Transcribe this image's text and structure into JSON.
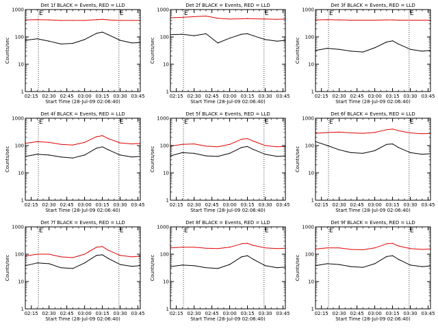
{
  "colors": {
    "events": "#000000",
    "lld": "#e00000",
    "axes": "#000000"
  },
  "panel_common": {
    "ylabel": "Counts/sec",
    "xlabel": "Start Time (28-Jul-09 02:06:40)",
    "y_scale": "log",
    "ylim": [
      1,
      1000
    ],
    "y_tick_labels": [
      "1",
      "10",
      "100",
      "1000"
    ],
    "x_tick_labels": [
      "02:15",
      "02:30",
      "02:45",
      "03:00",
      "03:15",
      "03:30",
      "03:45"
    ],
    "x_ticks": [
      "02:15",
      "02:30",
      "02:45",
      "03:00",
      "03:15",
      "03:30",
      "03:45"
    ],
    "xlim": [
      "02:10",
      "03:47"
    ],
    "vertical_dotted_lines": [
      "02:21",
      "03:29"
    ],
    "marker_labels": [
      "E",
      "E"
    ]
  },
  "chart_data": [
    {
      "type": "line",
      "title": "Det 1f BLACK = Events, RED = LLD",
      "series": [
        {
          "name": "BLACK = Events",
          "key": "events",
          "x": [
            "02:10",
            "02:20",
            "02:30",
            "02:40",
            "02:50",
            "03:00",
            "03:10",
            "03:15",
            "03:20",
            "03:30",
            "03:40",
            "03:47"
          ],
          "values": [
            75,
            85,
            70,
            55,
            58,
            80,
            135,
            150,
            120,
            75,
            60,
            62
          ]
        },
        {
          "name": "RED = LLD",
          "key": "lld",
          "x": [
            "02:10",
            "02:20",
            "02:30",
            "02:40",
            "02:50",
            "03:00",
            "03:10",
            "03:15",
            "03:20",
            "03:30",
            "03:40",
            "03:47"
          ],
          "values": [
            420,
            430,
            420,
            400,
            400,
            400,
            430,
            440,
            420,
            400,
            400,
            400
          ]
        }
      ]
    },
    {
      "type": "line",
      "title": "Det 2f BLACK = Events, RED = LLD",
      "series": [
        {
          "name": "BLACK = Events",
          "key": "events",
          "x": [
            "02:10",
            "02:20",
            "02:30",
            "02:40",
            "02:50",
            "03:00",
            "03:10",
            "03:15",
            "03:20",
            "03:30",
            "03:40",
            "03:47"
          ],
          "values": [
            120,
            125,
            110,
            130,
            60,
            90,
            125,
            130,
            110,
            80,
            70,
            75
          ]
        },
        {
          "name": "RED = LLD",
          "key": "lld",
          "x": [
            "02:10",
            "02:20",
            "02:30",
            "02:40",
            "02:50",
            "03:00",
            "03:10",
            "03:15",
            "03:20",
            "03:30",
            "03:40",
            "03:47"
          ],
          "values": [
            500,
            520,
            550,
            580,
            480,
            450,
            460,
            470,
            460,
            450,
            440,
            450
          ]
        }
      ]
    },
    {
      "type": "line",
      "title": "Det 3f BLACK = Events, RED = LLD",
      "series": [
        {
          "name": "BLACK = Events",
          "key": "events",
          "x": [
            "02:10",
            "02:20",
            "02:30",
            "02:40",
            "02:50",
            "03:00",
            "03:10",
            "03:15",
            "03:20",
            "03:30",
            "03:40",
            "03:47"
          ],
          "values": [
            32,
            38,
            35,
            30,
            28,
            40,
            65,
            72,
            55,
            35,
            30,
            32
          ]
        },
        {
          "name": "RED = LLD",
          "key": "lld",
          "x": [
            "02:10",
            "02:20",
            "02:30",
            "02:40",
            "02:50",
            "03:00",
            "03:10",
            "03:15",
            "03:20",
            "03:30",
            "03:40",
            "03:47"
          ],
          "values": [
            420,
            430,
            420,
            410,
            410,
            410,
            420,
            420,
            410,
            410,
            410,
            410
          ]
        }
      ]
    },
    {
      "type": "line",
      "title": "Det 4f BLACK = Events, RED = LLD",
      "series": [
        {
          "name": "BLACK = Events",
          "key": "events",
          "x": [
            "02:10",
            "02:20",
            "02:30",
            "02:40",
            "02:50",
            "03:00",
            "03:10",
            "03:15",
            "03:20",
            "03:30",
            "03:40",
            "03:47"
          ],
          "values": [
            40,
            48,
            45,
            38,
            35,
            45,
            80,
            90,
            70,
            45,
            38,
            40
          ]
        },
        {
          "name": "RED = LLD",
          "key": "lld",
          "x": [
            "02:10",
            "02:20",
            "02:30",
            "02:40",
            "02:50",
            "03:00",
            "03:10",
            "03:15",
            "03:20",
            "03:30",
            "03:40",
            "03:47"
          ],
          "values": [
            120,
            140,
            130,
            110,
            105,
            130,
            210,
            230,
            180,
            125,
            115,
            120
          ]
        }
      ]
    },
    {
      "type": "line",
      "title": "Det 5f BLACK = Events, RED = LLD",
      "series": [
        {
          "name": "BLACK = Events",
          "key": "events",
          "x": [
            "02:10",
            "02:20",
            "02:30",
            "02:40",
            "02:50",
            "03:00",
            "03:10",
            "03:15",
            "03:20",
            "03:30",
            "03:40",
            "03:47"
          ],
          "values": [
            42,
            55,
            52,
            42,
            40,
            52,
            85,
            92,
            72,
            48,
            40,
            42
          ]
        },
        {
          "name": "RED = LLD",
          "key": "lld",
          "x": [
            "02:10",
            "02:20",
            "02:30",
            "02:40",
            "02:50",
            "03:00",
            "03:10",
            "03:15",
            "03:20",
            "03:30",
            "03:40",
            "03:47"
          ],
          "values": [
            95,
            110,
            115,
            95,
            90,
            110,
            170,
            180,
            145,
            100,
            90,
            92
          ]
        }
      ]
    },
    {
      "type": "line",
      "title": "Det 6f BLACK = Events, RED = LLD",
      "series": [
        {
          "name": "BLACK = Events",
          "key": "events",
          "x": [
            "02:10",
            "02:20",
            "02:30",
            "02:40",
            "02:50",
            "03:00",
            "03:10",
            "03:15",
            "03:20",
            "03:30",
            "03:40",
            "03:47"
          ],
          "values": [
            140,
            100,
            70,
            55,
            52,
            65,
            110,
            115,
            85,
            55,
            48,
            50
          ]
        },
        {
          "name": "RED = LLD",
          "key": "lld",
          "x": [
            "02:10",
            "02:20",
            "02:30",
            "02:40",
            "02:50",
            "03:00",
            "03:10",
            "03:15",
            "03:20",
            "03:30",
            "03:40",
            "03:47"
          ],
          "values": [
            280,
            300,
            310,
            290,
            280,
            300,
            380,
            400,
            350,
            290,
            270,
            275
          ]
        }
      ]
    },
    {
      "type": "line",
      "title": "Det 7f BLACK = Events, RED = LLD",
      "series": [
        {
          "name": "BLACK = Events",
          "key": "events",
          "x": [
            "02:10",
            "02:20",
            "02:30",
            "02:40",
            "02:50",
            "03:00",
            "03:10",
            "03:15",
            "03:20",
            "03:30",
            "03:40",
            "03:47"
          ],
          "values": [
            38,
            48,
            45,
            32,
            30,
            48,
            90,
            95,
            70,
            42,
            36,
            38
          ]
        },
        {
          "name": "RED = LLD",
          "key": "lld",
          "x": [
            "02:10",
            "02:20",
            "02:30",
            "02:40",
            "02:50",
            "03:00",
            "03:10",
            "03:15",
            "03:20",
            "03:30",
            "03:40",
            "03:47"
          ],
          "values": [
            85,
            100,
            100,
            80,
            75,
            100,
            180,
            190,
            140,
            90,
            80,
            85
          ]
        }
      ]
    },
    {
      "type": "line",
      "title": "Det 8f BLACK = Events, RED = LLD",
      "series": [
        {
          "name": "BLACK = Events",
          "key": "events",
          "x": [
            "02:10",
            "02:20",
            "02:30",
            "02:40",
            "02:50",
            "03:00",
            "03:10",
            "03:15",
            "03:20",
            "03:30",
            "03:40",
            "03:47"
          ],
          "values": [
            35,
            40,
            38,
            32,
            30,
            42,
            80,
            88,
            65,
            38,
            32,
            34
          ]
        },
        {
          "name": "RED = LLD",
          "key": "lld",
          "x": [
            "02:10",
            "02:20",
            "02:30",
            "02:40",
            "02:50",
            "03:00",
            "03:10",
            "03:15",
            "03:20",
            "03:30",
            "03:40",
            "03:47"
          ],
          "values": [
            170,
            180,
            180,
            165,
            160,
            180,
            240,
            250,
            210,
            170,
            160,
            165
          ]
        }
      ]
    },
    {
      "type": "line",
      "title": "Det 9f BLACK = Events, RED = LLD",
      "series": [
        {
          "name": "BLACK = Events",
          "key": "events",
          "x": [
            "02:10",
            "02:20",
            "02:30",
            "02:40",
            "02:50",
            "03:00",
            "03:10",
            "03:15",
            "03:20",
            "03:30",
            "03:40",
            "03:47"
          ],
          "values": [
            38,
            45,
            42,
            35,
            33,
            45,
            82,
            88,
            65,
            40,
            35,
            37
          ]
        },
        {
          "name": "RED = LLD",
          "key": "lld",
          "x": [
            "02:10",
            "02:20",
            "02:30",
            "02:40",
            "02:50",
            "03:00",
            "03:10",
            "03:15",
            "03:20",
            "03:30",
            "03:40",
            "03:47"
          ],
          "values": [
            155,
            170,
            170,
            150,
            145,
            170,
            240,
            250,
            200,
            160,
            150,
            155
          ]
        }
      ]
    }
  ]
}
